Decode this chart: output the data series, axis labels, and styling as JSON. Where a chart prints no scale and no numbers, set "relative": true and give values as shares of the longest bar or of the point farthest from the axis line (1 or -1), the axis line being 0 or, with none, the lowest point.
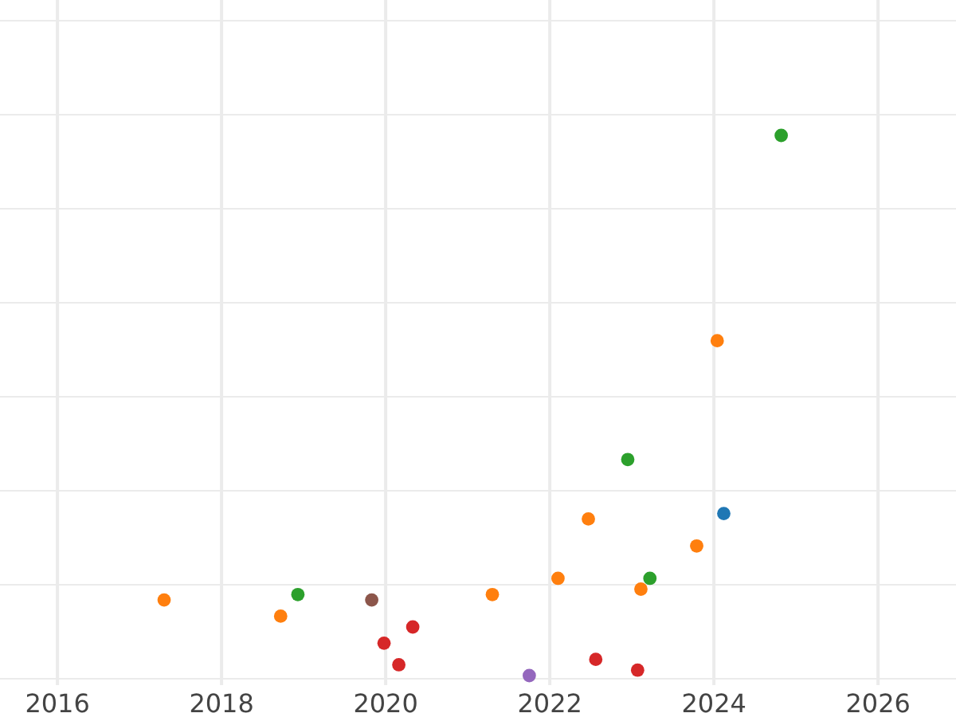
{
  "chart_data": {
    "type": "scatter",
    "relative": true,
    "xlim": [
      2015.3,
      2026.95
    ],
    "xticks": [
      2016,
      2018,
      2020,
      2022,
      2024,
      2026
    ],
    "grid": true,
    "marker": "circle",
    "series": [
      {
        "color": "#ff7f0e",
        "x": [
          2017.3,
          2018.72,
          2021.3,
          2022.1,
          2022.47,
          2023.11,
          2023.79,
          2024.04
        ],
        "values": [
          0.14,
          0.11,
          0.15,
          0.18,
          0.29,
          0.16,
          0.24,
          0.62
        ]
      },
      {
        "color": "#2ca02c",
        "x": [
          2018.93,
          2022.95,
          2023.22,
          2024.82
        ],
        "values": [
          0.15,
          0.4,
          0.18,
          1
        ]
      },
      {
        "color": "#8c564b",
        "x": [
          2019.83
        ],
        "values": [
          0.14
        ]
      },
      {
        "color": "#d62728",
        "x": [
          2019.98,
          2020.16,
          2020.33,
          2022.56,
          2023.07
        ],
        "values": [
          0.06,
          0.02,
          0.09,
          0.03,
          0.01
        ]
      },
      {
        "color": "#9467bd",
        "x": [
          2021.75
        ],
        "values": [
          0
        ]
      },
      {
        "color": "#1f77b4",
        "x": [
          2024.12
        ],
        "values": [
          0.3
        ]
      }
    ]
  }
}
